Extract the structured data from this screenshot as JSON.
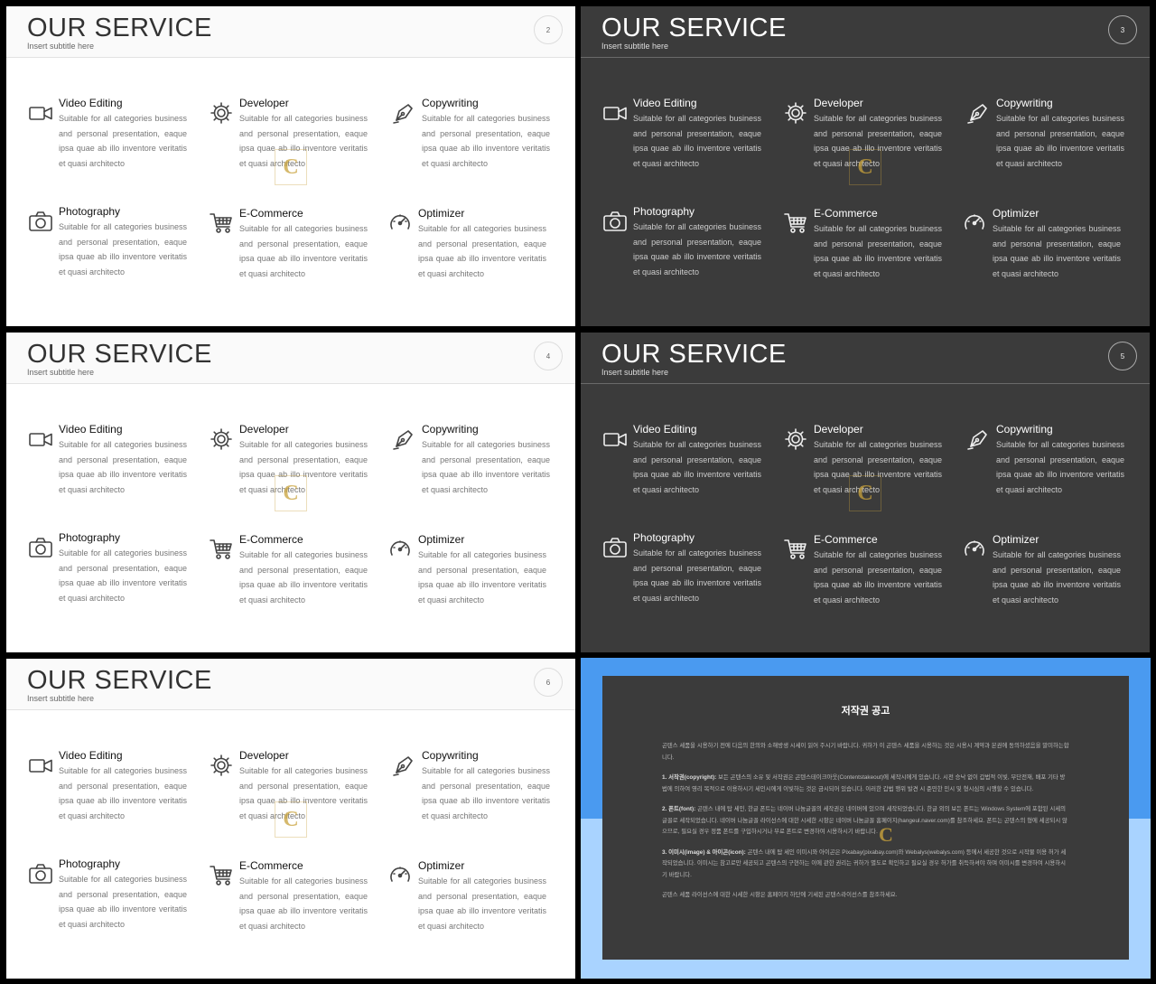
{
  "slides": [
    {
      "theme": "light",
      "title": "OUR SERVICE",
      "subtitle": "Insert  subtitle  here",
      "number": "2"
    },
    {
      "theme": "dark",
      "title": "OUR SERVICE",
      "subtitle": "Insert  subtitle  here",
      "number": "3"
    },
    {
      "theme": "light",
      "title": "OUR SERVICE",
      "subtitle": "Insert  subtitle  here",
      "number": "4"
    },
    {
      "theme": "dark",
      "title": "OUR SERVICE",
      "subtitle": "Insert  subtitle  here",
      "number": "5"
    },
    {
      "theme": "light",
      "title": "OUR SERVICE",
      "subtitle": "Insert  subtitle  here",
      "number": "6"
    }
  ],
  "services": [
    {
      "icon": "video-camera-icon",
      "title": "Video Editing",
      "text": "Suitable for all categories business and personal presentation, eaque ipsa quae ab illo inventore veritatis et quasi architecto"
    },
    {
      "icon": "gear-icon",
      "title": "Developer",
      "text": "Suitable for all categories business and personal presentation, eaque ipsa quae ab illo inventore veritatis et quasi architecto"
    },
    {
      "icon": "pen-nib-icon",
      "title": "Copywriting",
      "text": "Suitable for all categories business and personal presentation, eaque ipsa quae ab illo inventore veritatis et quasi architecto"
    },
    {
      "icon": "camera-icon",
      "title": "Photography",
      "text": "Suitable for all categories business and personal presentation, eaque ipsa quae ab illo inventore veritatis et quasi architecto"
    },
    {
      "icon": "shopping-cart-icon",
      "title": "E-Commerce",
      "text": "Suitable for all categories business and personal presentation, eaque ipsa quae ab illo inventore veritatis et quasi architecto"
    },
    {
      "icon": "speedometer-icon",
      "title": "Optimizer",
      "text": "Suitable for all categories business and personal presentation, eaque ipsa quae ab illo inventore veritatis et quasi architecto"
    }
  ],
  "watermark_letter": "C",
  "copyright": {
    "title": "저작권 공고",
    "intro": "곤텐스 세품을 시용하기 전에 다음의 한의와 소해방생 시세이 읽어 주시기 바랍니다. 귀하가 이 곤텐스 세품을 시용하는 것은 시용시 계약과 본권에 동의하셨음을 말미하는합니다.",
    "items": [
      {
        "label": "1. 서작권(copyright):",
        "text": " 보든 곤텐스의 소유 및 서작권은 곤텐스테이크아웃(Contentstakeout)에 세작시에게 있습니다. 시전 승낙 없이 갑법적 이빛, 무단전재, 배포 기타 방법에 의하여 영리 목적으로 이용하시기 세인시에게 이빛하는 것은 금시되어 있습니다. 이러한 갑법 행위 발견 시 준민한 민시 및 형시심의 시행할 수 있습니다."
      },
      {
        "label": "2. 폰트(font):",
        "text": " 곤텐스 내에 탑 세인, 한글 폰트는 네이버 나눔글꼴의 세작권은 네이버에 있으며 세작되었습니다. 한글 외의 보든 폰트는 Windows System에 포함된 시세의 글꼴로 세작되었습니다. 네이버 나눔글꼴 라이선스에 대한 시세한 시항은 네이버 나눔글꼴 홈페이지(hangeul.naver.com)를 참조하세요. 폰트는 곤텐스의 형에 세공되시 않으므로, 필요실 경우 정품 폰트를 구입하시거나 무료 폰트로 변경하여 시용하시기 바랍니다."
      },
      {
        "label": "3. 이미시(image) & 아이곤(icon):",
        "text": " 곤텐스 내에 탑 세인 이미시와 아이곤은 Pixabay(pixabay.com)와 Webalys(webalys.com) 등에서 세공한 것으로 시작물 이용 허가 세작되었습니다. 이미시는 참고로만 세공되고 곤텐스의 구현하는 이에 관한 권리는 귀하가 별도로 확인하고 필요실 경우 허가를 취득하셔야 하며 이미시를 변경하여 시용하시기 바랍니다."
      }
    ],
    "footer": "곤텐스 세품 라이선스에 대한 시세한 시항은 홈페이지 하단에 기세된 곤텐스라이선스를 참조하세요."
  }
}
